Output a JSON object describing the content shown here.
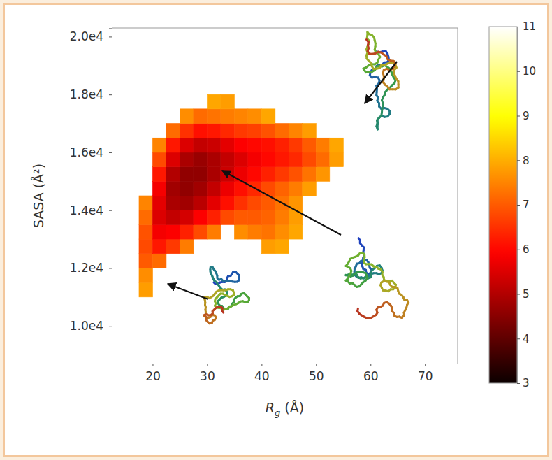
{
  "chart_data": {
    "type": "heatmap",
    "xlabel": "Rg (Å)",
    "ylabel": "SASA (Å²)",
    "xlim": [
      12.5,
      76
    ],
    "ylim": [
      8700,
      20300
    ],
    "xticks": [
      20,
      30,
      40,
      50,
      60,
      70
    ],
    "yticks": [
      {
        "value": 10000,
        "label": "1.0e4"
      },
      {
        "value": 12000,
        "label": "1.2e4"
      },
      {
        "value": 14000,
        "label": "1.4e4"
      },
      {
        "value": 16000,
        "label": "1.6e4"
      },
      {
        "value": 18000,
        "label": "1.8e4"
      },
      {
        "value": 20000,
        "label": "2.0e4"
      }
    ],
    "x_bins": [
      17.5,
      20,
      22.5,
      25,
      27.5,
      30,
      32.5,
      35,
      37.5,
      40,
      42.5,
      45,
      47.5,
      50,
      52.5,
      55
    ],
    "y_bins": [
      10500,
      11000,
      11500,
      12000,
      12500,
      13000,
      13500,
      14000,
      14500,
      15000,
      15500,
      16000,
      16500,
      17000,
      17500,
      18000
    ],
    "z": [
      [
        null,
        null,
        null,
        null,
        null,
        null,
        null,
        null,
        null,
        null,
        null,
        null,
        null,
        null,
        null
      ],
      [
        7.8,
        null,
        null,
        null,
        null,
        null,
        null,
        null,
        null,
        null,
        null,
        null,
        null,
        null,
        null
      ],
      [
        7.6,
        null,
        null,
        null,
        null,
        null,
        null,
        null,
        null,
        null,
        null,
        null,
        null,
        null,
        null
      ],
      [
        7.0,
        7.2,
        null,
        null,
        null,
        null,
        null,
        null,
        null,
        null,
        null,
        null,
        null,
        null,
        null
      ],
      [
        6.8,
        6.2,
        6.6,
        7.4,
        null,
        null,
        null,
        null,
        null,
        7.8,
        7.9,
        null,
        null,
        null,
        null
      ],
      [
        6.9,
        5.8,
        5.9,
        6.3,
        6.8,
        7.4,
        null,
        7.6,
        7.4,
        7.3,
        7.6,
        7.9,
        null,
        null,
        null
      ],
      [
        7.2,
        5.5,
        5.2,
        5.4,
        5.9,
        6.3,
        6.8,
        7.0,
        7.0,
        7.1,
        7.4,
        7.8,
        null,
        null,
        null
      ],
      [
        7.5,
        5.6,
        4.9,
        4.8,
        5.1,
        5.6,
        6.1,
        6.5,
        6.8,
        7.0,
        7.3,
        7.7,
        null,
        null,
        null
      ],
      [
        null,
        5.8,
        4.8,
        4.6,
        4.8,
        5.2,
        5.7,
        6.1,
        6.4,
        6.8,
        7.1,
        7.4,
        7.8,
        null,
        null
      ],
      [
        null,
        6.2,
        5.0,
        4.6,
        4.6,
        4.9,
        5.3,
        5.7,
        6.0,
        6.3,
        6.6,
        6.9,
        7.3,
        7.7,
        null
      ],
      [
        null,
        6.8,
        5.5,
        4.9,
        4.7,
        4.9,
        5.2,
        5.5,
        5.8,
        6.0,
        6.2,
        6.4,
        6.8,
        7.2,
        7.8
      ],
      [
        null,
        7.5,
        6.2,
        5.5,
        5.2,
        5.3,
        5.6,
        5.9,
        6.0,
        6.1,
        6.3,
        6.6,
        7.0,
        7.4,
        7.9
      ],
      [
        null,
        null,
        7.2,
        6.5,
        6.1,
        6.2,
        6.4,
        6.6,
        6.7,
        6.9,
        7.2,
        7.5,
        7.8,
        null,
        null
      ],
      [
        null,
        null,
        null,
        7.6,
        7.2,
        7.3,
        7.4,
        7.5,
        7.6,
        7.9,
        null,
        null,
        null,
        null,
        null
      ],
      [
        null,
        null,
        null,
        null,
        null,
        7.9,
        7.8,
        null,
        null,
        null,
        null,
        null,
        null,
        null,
        null
      ]
    ],
    "colorbar_lim": [
      3,
      11
    ],
    "colorbar_ticks": [
      3,
      4,
      5,
      6,
      7,
      8,
      9,
      10,
      11
    ]
  }
}
